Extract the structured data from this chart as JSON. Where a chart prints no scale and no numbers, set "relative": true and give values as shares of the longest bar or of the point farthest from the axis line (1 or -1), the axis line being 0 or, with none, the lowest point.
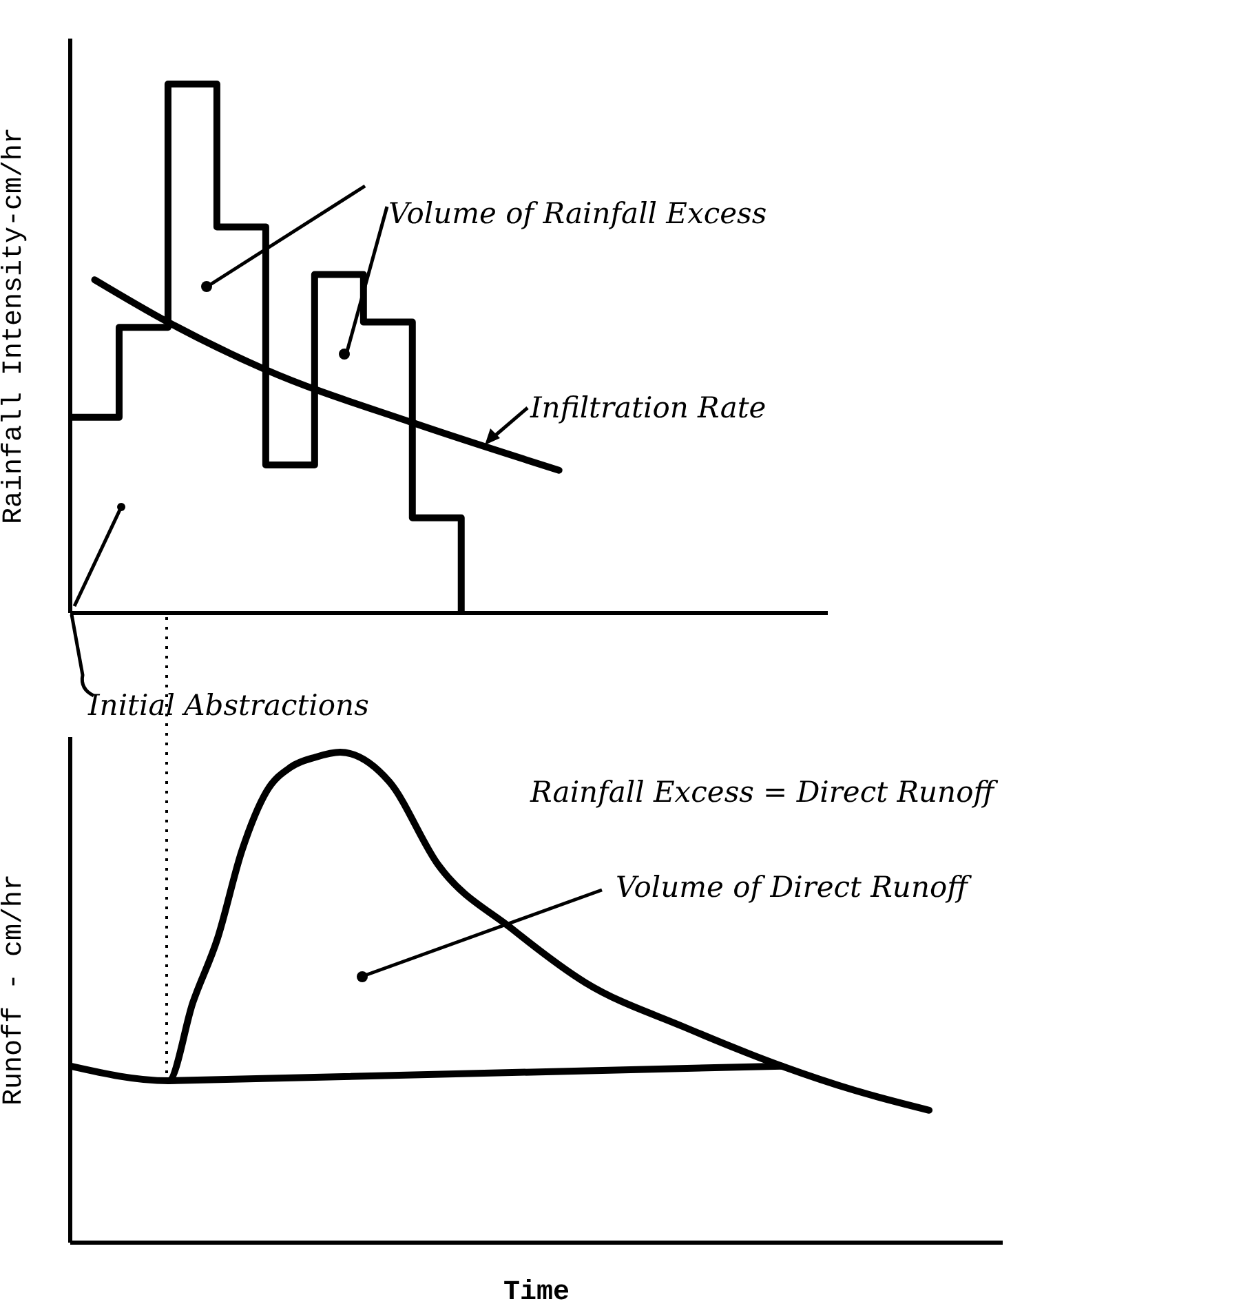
{
  "chart_data": [
    {
      "type": "line",
      "ylabel": "Rainfall Intensity-cm/hr",
      "relative": true,
      "categories": [
        null,
        null,
        null,
        null,
        null,
        null,
        null,
        null,
        null,
        null,
        null,
        null,
        null,
        null,
        null,
        null,
        null,
        null,
        null,
        null,
        null,
        null,
        null,
        null,
        null,
        null,
        null,
        null,
        null,
        null,
        null,
        null
      ],
      "series": [
        {
          "type": "step",
          "color": "#000000",
          "values": [
            0.37,
            null,
            0.54,
            null,
            1,
            null,
            0.73,
            null,
            0.28,
            null,
            0.64,
            null,
            0.55,
            null,
            0.18,
            null,
            0,
            null,
            null,
            null,
            null,
            null,
            null,
            null,
            null,
            null,
            null,
            null,
            null,
            null,
            null,
            null
          ]
        },
        {
          "type": "line",
          "color": "#000000",
          "values": [
            null,
            0.63,
            null,
            null,
            0.55,
            null,
            null,
            null,
            0.46,
            null,
            null,
            null,
            null,
            null,
            0.36,
            null,
            null,
            null,
            null,
            null,
            0.27,
            null,
            null,
            null,
            null,
            null,
            null,
            null,
            null,
            null,
            null,
            null
          ]
        }
      ],
      "annotations": [
        "Volume of Rainfall Excess",
        "Infiltration Rate",
        "Initial Abstractions"
      ],
      "grid": false,
      "legend": false
    },
    {
      "type": "line",
      "xlabel": "Time",
      "ylabel": "Runoff - cm/hr",
      "relative": true,
      "categories": [
        null,
        null,
        null,
        null,
        null,
        null,
        null,
        null,
        null,
        null,
        null,
        null,
        null,
        null,
        null,
        null,
        null,
        null,
        null,
        null,
        null,
        null,
        null,
        null,
        null,
        null,
        null,
        null,
        null,
        null,
        null,
        null,
        null,
        null,
        null,
        null,
        null,
        null,
        null
      ],
      "series": [
        {
          "type": "line",
          "color": "#000000",
          "values": [
            0.36,
            null,
            null,
            null,
            0.33,
            0.49,
            0.62,
            0.8,
            0.92,
            0.97,
            0.99,
            1,
            null,
            0.94,
            null,
            0.77,
            null,
            null,
            0.64,
            null,
            null,
            0.53,
            null,
            null,
            null,
            0.44,
            null,
            null,
            null,
            0.36,
            null,
            null,
            0.31,
            null,
            null,
            0.27,
            null,
            null,
            null
          ]
        },
        {
          "type": "line",
          "color": "#000000",
          "values": [
            null,
            null,
            null,
            null,
            0.33,
            null,
            null,
            null,
            null,
            null,
            null,
            null,
            null,
            null,
            null,
            null,
            null,
            null,
            null,
            null,
            null,
            null,
            null,
            null,
            null,
            null,
            null,
            null,
            null,
            0.36,
            null,
            null,
            null,
            null,
            null,
            null,
            null,
            null,
            null
          ]
        }
      ],
      "annotations": [
        "Rainfall Excess = Direct Runoff",
        "Volume of Direct Runoff"
      ],
      "grid": false,
      "legend": false
    }
  ]
}
